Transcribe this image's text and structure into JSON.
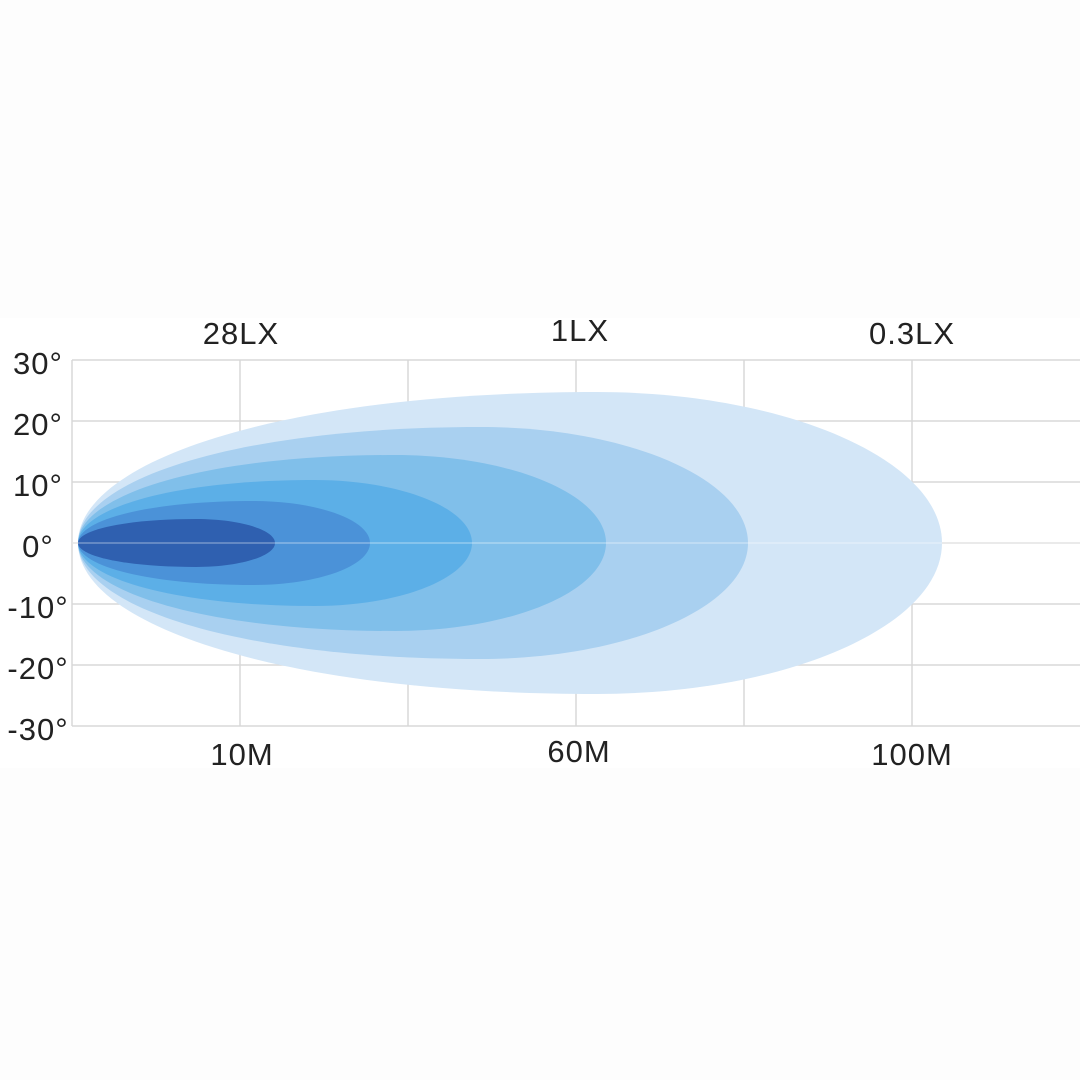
{
  "top_labels": [
    "28LX",
    "1LX",
    "0.3LX"
  ],
  "y_labels": [
    "30°",
    "20°",
    "10°",
    "0°",
    "-10°",
    "-20°",
    "-30°"
  ],
  "x_labels": [
    "10M",
    "60M",
    "100M"
  ]
}
